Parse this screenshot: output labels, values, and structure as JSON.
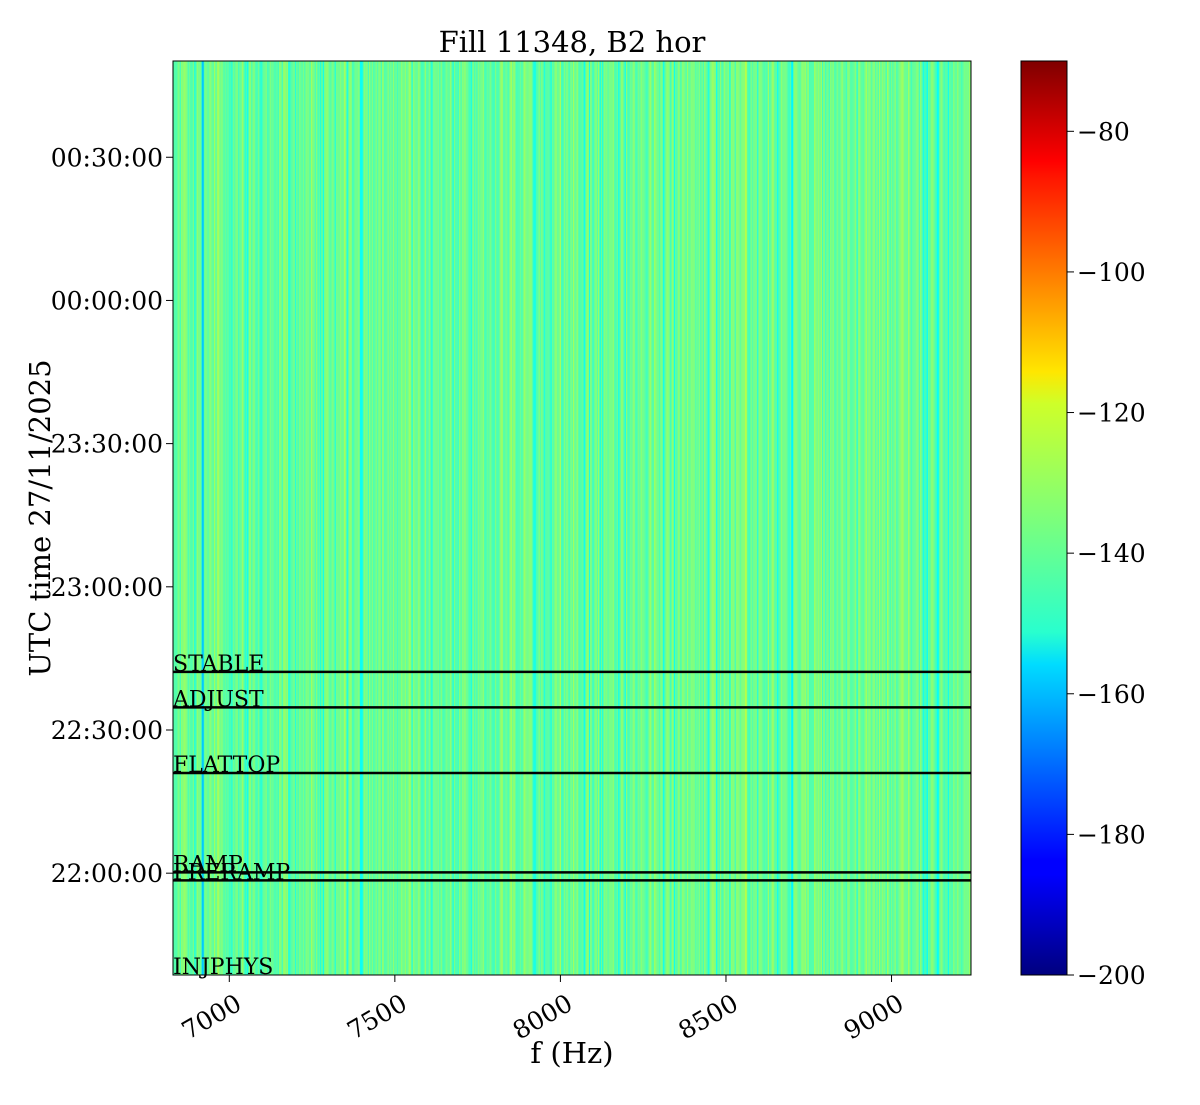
{
  "chart_data": {
    "type": "heatmap",
    "title": "Fill 11348, B2 hor",
    "xlabel": "f (Hz)",
    "ylabel": "UTC time 27/11/2025",
    "xlim": [
      6830,
      9240
    ],
    "ylim": [
      "21:38:40",
      "00:50:10"
    ],
    "x_ticks": [
      7000,
      7500,
      8000,
      8500,
      9000
    ],
    "x_tick_labels": [
      "7000",
      "7500",
      "8000",
      "8500",
      "9000"
    ],
    "y_ticks": [
      "22:00:00",
      "22:30:00",
      "23:00:00",
      "23:30:00",
      "00:00:00",
      "00:30:00"
    ],
    "y_tick_labels": [
      "22:00:00",
      "22:30:00",
      "23:00:00",
      "23:30:00",
      "00:00:00",
      "00:30:00"
    ],
    "colorbar": {
      "colormap": "jet",
      "vmin": -200,
      "vmax": -70,
      "ticks": [
        -200,
        -180,
        -160,
        -140,
        -120,
        -100,
        -80
      ],
      "tick_labels": [
        "−200",
        "−180",
        "−160",
        "−140",
        "−120",
        "−100",
        "−80"
      ]
    },
    "spectrum_baseline_db": -138,
    "notable_lines": [
      {
        "f_hz": 6920,
        "level_db": -158
      },
      {
        "f_hz": 7400,
        "level_db": -150
      },
      {
        "f_hz": 8560,
        "level_db": -128
      },
      {
        "f_hz": 8700,
        "level_db": -152
      },
      {
        "f_hz": 9140,
        "level_db": -150
      }
    ],
    "beam_modes": [
      {
        "label": "INJPHYS",
        "time": "21:38:40"
      },
      {
        "label": "PRERAMP",
        "time": "21:58:30"
      },
      {
        "label": "RAMP",
        "time": "22:00:10"
      },
      {
        "label": "FLATTOP",
        "time": "22:21:00"
      },
      {
        "label": "ADJUST",
        "time": "22:34:45"
      },
      {
        "label": "STABLE",
        "time": "22:42:10"
      }
    ]
  }
}
